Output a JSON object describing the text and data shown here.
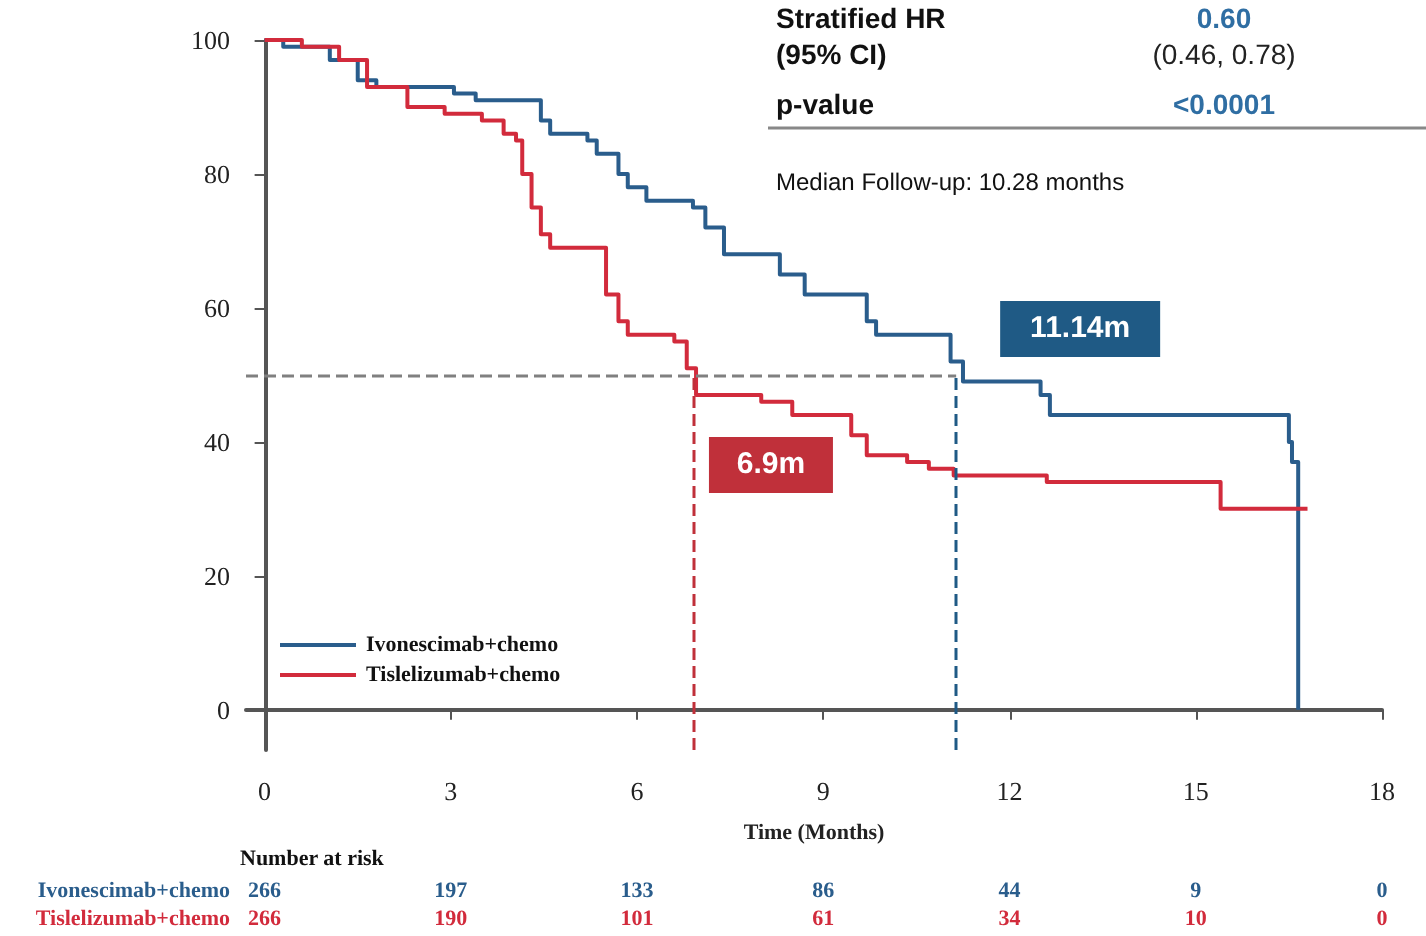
{
  "chart_data": {
    "type": "step",
    "xlabel": "Time (Months)",
    "xlim": [
      -0.3,
      18
    ],
    "xticks": [
      0,
      3,
      6,
      9,
      12,
      15,
      18
    ],
    "ylim": [
      -6,
      100
    ],
    "yticks": [
      0,
      20,
      40,
      60,
      80,
      100
    ],
    "legend": "bottom left",
    "grid": false,
    "marker": "none",
    "line_style": "solid",
    "series": [
      {
        "name": "Ivonescimab+chemo",
        "color": "#2a5d8c",
        "x": [
          0,
          0.3,
          1.05,
          1.5,
          1.8,
          2.6,
          3.05,
          3.4,
          4.1,
          4.45,
          4.6,
          5.2,
          5.35,
          5.7,
          5.85,
          6.15,
          6.9,
          7.1,
          7.4,
          8.1,
          8.3,
          8.7,
          9.55,
          9.7,
          9.85,
          10.8,
          11.05,
          11.25,
          12.35,
          12.5,
          12.65,
          16.4,
          16.5,
          16.55,
          16.65
        ],
        "values": [
          100,
          99,
          97,
          94,
          93,
          93,
          92,
          91,
          91,
          88,
          86,
          85,
          83,
          80,
          78,
          76,
          75,
          72,
          68,
          68,
          65,
          62,
          62,
          58,
          56,
          56,
          52,
          49,
          49,
          47,
          44,
          44,
          40,
          37,
          0
        ]
      },
      {
        "name": "Tislelizumab+chemo",
        "color": "#d22b3c",
        "x": [
          0,
          0.6,
          1.2,
          1.65,
          2.3,
          2.9,
          3.5,
          3.85,
          4.05,
          4.15,
          4.3,
          4.45,
          4.6,
          5.4,
          5.5,
          5.7,
          5.85,
          6.6,
          6.8,
          6.95,
          7.75,
          8.0,
          8.5,
          9.25,
          9.45,
          9.7,
          10.35,
          10.7,
          11.1,
          12.55,
          12.6,
          15.35,
          15.4,
          16.8
        ],
        "values": [
          100,
          99,
          97,
          93,
          90,
          89,
          88,
          86,
          85,
          80,
          75,
          71,
          69,
          69,
          62,
          58,
          56,
          55,
          51,
          47,
          47,
          46,
          44,
          44,
          41,
          38,
          37,
          36,
          35,
          35,
          34,
          34,
          30,
          30
        ]
      }
    ],
    "ref_lines": [
      {
        "axis": "y",
        "value": 50,
        "color": "#808080",
        "line_style": "dashed"
      },
      {
        "axis": "x",
        "value": 6.9,
        "label": "6.9m",
        "color": "#c0303a",
        "line_style": "dashed"
      },
      {
        "axis": "x",
        "value": 11.14,
        "label": "11.14m",
        "color": "#1f5a85",
        "line_style": "dashed"
      }
    ],
    "annotations": [
      "Stratified HR",
      "(95% CI)",
      "0.60",
      "(0.46, 0.78)",
      "p-value",
      "<0.0001",
      "Median Follow-up: 10.28 months",
      "Number at risk",
      "266 197 133 86 44 9 0",
      "266 190 101 61 34 10 0"
    ]
  }
}
